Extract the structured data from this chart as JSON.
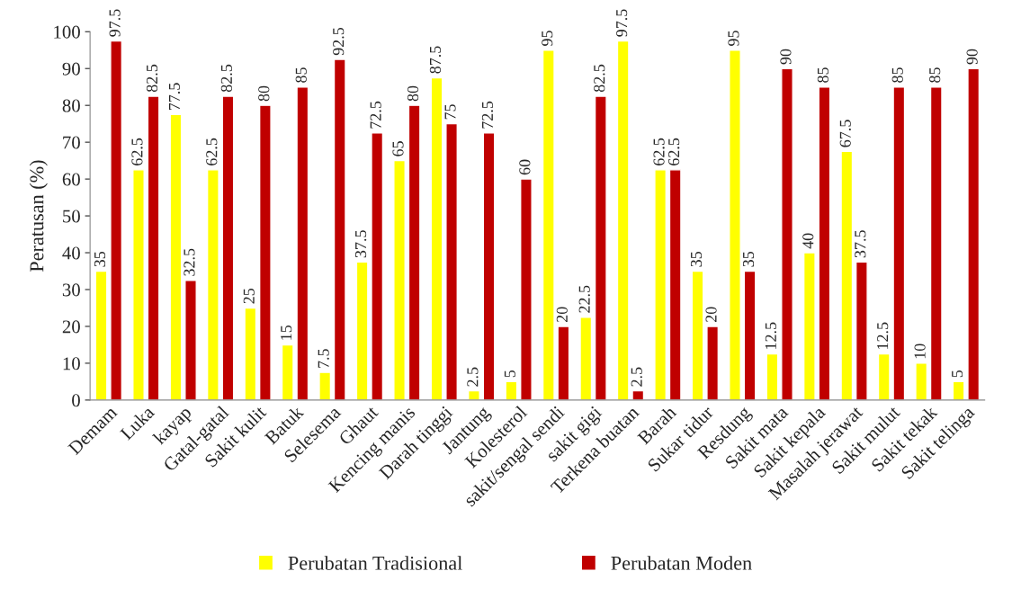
{
  "chart_data": {
    "type": "bar",
    "ylabel": "Peratusan (%)",
    "categories": [
      "Demam",
      "Luka",
      "kayap",
      "Gatal-gatal",
      "Sakit kulit",
      "Batuk",
      "Selesema",
      "Ghaut",
      "Kencing manis",
      "Darah tinggi",
      "Jantung",
      "Kolesterol",
      "sakit/sengal sendi",
      "sakit gigi",
      "Terkena buatan",
      "Barah",
      "Sukar tidur",
      "Resdung",
      "Sakit mata",
      "Sakit kepala",
      "Masalah jerawat",
      "Sakit mulut",
      "Sakit tekak",
      "Sakit telinga"
    ],
    "series": [
      {
        "name": "Perubatan Tradisional",
        "color": "#ffff00",
        "values": [
          35,
          62.5,
          77.5,
          62.5,
          25,
          15,
          7.5,
          37.5,
          65,
          87.5,
          2.5,
          5,
          95,
          22.5,
          97.5,
          62.5,
          35,
          95,
          12.5,
          40,
          67.5,
          12.5,
          10,
          5
        ]
      },
      {
        "name": "Perubatan Moden",
        "color": "#c00000",
        "values": [
          97.5,
          82.5,
          32.5,
          82.5,
          80,
          85,
          92.5,
          72.5,
          80,
          75,
          72.5,
          60,
          20,
          82.5,
          2.5,
          62.5,
          20,
          35,
          90,
          85,
          37.5,
          85,
          85,
          90
        ]
      }
    ],
    "ylim": [
      0,
      100
    ],
    "yticks": [
      0,
      10,
      20,
      30,
      40,
      50,
      60,
      70,
      80,
      90,
      100
    ],
    "data_labels": true,
    "legend": "bottom",
    "grid": false
  }
}
